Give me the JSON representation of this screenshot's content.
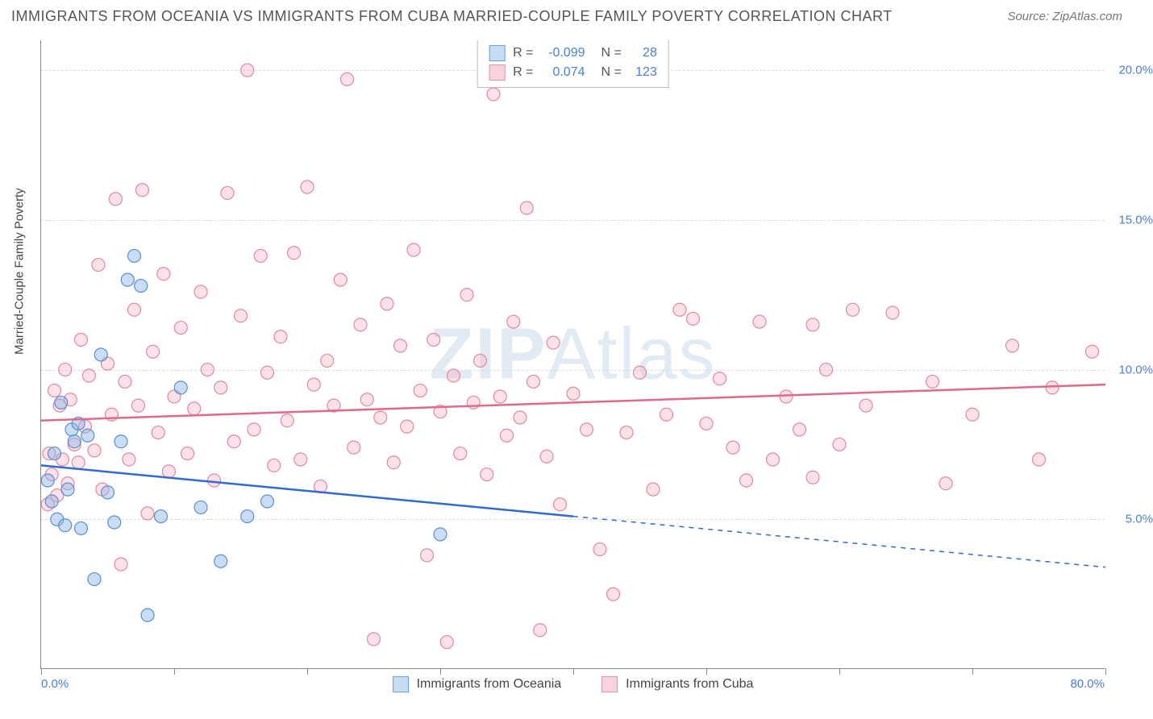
{
  "title": "IMMIGRANTS FROM OCEANIA VS IMMIGRANTS FROM CUBA MARRIED-COUPLE FAMILY POVERTY CORRELATION CHART",
  "source": "Source: ZipAtlas.com",
  "watermark_a": "ZIP",
  "watermark_b": "Atlas",
  "yaxis": {
    "title": "Married-Couple Family Poverty",
    "min": 0.0,
    "max": 21.0,
    "ticks": [
      5.0,
      10.0,
      15.0,
      20.0
    ],
    "tick_labels": [
      "5.0%",
      "10.0%",
      "15.0%",
      "20.0%"
    ],
    "tick_color": "#4a7fd6",
    "grid_color": "#dcdcdc"
  },
  "xaxis": {
    "min": 0.0,
    "max": 80.0,
    "tick_positions": [
      0,
      10,
      20,
      30,
      40,
      50,
      60,
      70,
      80
    ],
    "start_label": "0.0%",
    "end_label": "80.0%"
  },
  "series": {
    "oceania": {
      "label": "Immigrants from Oceania",
      "R": "-0.099",
      "N": "28",
      "marker_fill": "rgba(140,180,230,0.45)",
      "marker_stroke": "#5a8fd0",
      "swatch_fill": "#c7ddf4",
      "swatch_border": "#6a9fe0",
      "line_color": "#2f6bd0",
      "line_width": 2.5,
      "line_start": {
        "x": 0,
        "y": 6.8
      },
      "line_end_solid": {
        "x": 40,
        "y": 5.1
      },
      "line_end_dash": {
        "x": 80,
        "y": 3.4
      },
      "points": [
        [
          0.5,
          6.3
        ],
        [
          0.8,
          5.6
        ],
        [
          1.0,
          7.2
        ],
        [
          1.2,
          5.0
        ],
        [
          1.5,
          8.9
        ],
        [
          1.8,
          4.8
        ],
        [
          2.0,
          6.0
        ],
        [
          2.3,
          8.0
        ],
        [
          2.5,
          7.6
        ],
        [
          2.8,
          8.2
        ],
        [
          3.0,
          4.7
        ],
        [
          3.5,
          7.8
        ],
        [
          4.0,
          3.0
        ],
        [
          4.5,
          10.5
        ],
        [
          5.0,
          5.9
        ],
        [
          5.5,
          4.9
        ],
        [
          6.0,
          7.6
        ],
        [
          6.5,
          13.0
        ],
        [
          7.0,
          13.8
        ],
        [
          7.5,
          12.8
        ],
        [
          8.0,
          1.8
        ],
        [
          9.0,
          5.1
        ],
        [
          10.5,
          9.4
        ],
        [
          12.0,
          5.4
        ],
        [
          13.5,
          3.6
        ],
        [
          15.5,
          5.1
        ],
        [
          17.0,
          5.6
        ],
        [
          30.0,
          4.5
        ]
      ]
    },
    "cuba": {
      "label": "Immigrants from Cuba",
      "R": "0.074",
      "N": "123",
      "marker_fill": "rgba(245,170,190,0.35)",
      "marker_stroke": "#e08aa0",
      "swatch_fill": "#f7d3dd",
      "swatch_border": "#e793aa",
      "line_color": "#e06a8a",
      "line_width": 2.5,
      "line_start": {
        "x": 0,
        "y": 8.3
      },
      "line_end": {
        "x": 80,
        "y": 9.5
      },
      "points": [
        [
          0.5,
          5.5
        ],
        [
          0.6,
          7.2
        ],
        [
          0.8,
          6.5
        ],
        [
          1.0,
          9.3
        ],
        [
          1.2,
          5.8
        ],
        [
          1.4,
          8.8
        ],
        [
          1.6,
          7.0
        ],
        [
          1.8,
          10.0
        ],
        [
          2.0,
          6.2
        ],
        [
          2.2,
          9.0
        ],
        [
          2.5,
          7.5
        ],
        [
          2.8,
          6.9
        ],
        [
          3.0,
          11.0
        ],
        [
          3.3,
          8.1
        ],
        [
          3.6,
          9.8
        ],
        [
          4.0,
          7.3
        ],
        [
          4.3,
          13.5
        ],
        [
          4.6,
          6.0
        ],
        [
          5.0,
          10.2
        ],
        [
          5.3,
          8.5
        ],
        [
          5.6,
          15.7
        ],
        [
          6.0,
          3.5
        ],
        [
          6.3,
          9.6
        ],
        [
          6.6,
          7.0
        ],
        [
          7.0,
          12.0
        ],
        [
          7.3,
          8.8
        ],
        [
          7.6,
          16.0
        ],
        [
          8.0,
          5.2
        ],
        [
          8.4,
          10.6
        ],
        [
          8.8,
          7.9
        ],
        [
          9.2,
          13.2
        ],
        [
          9.6,
          6.6
        ],
        [
          10.0,
          9.1
        ],
        [
          10.5,
          11.4
        ],
        [
          11.0,
          7.2
        ],
        [
          11.5,
          8.7
        ],
        [
          12.0,
          12.6
        ],
        [
          12.5,
          10.0
        ],
        [
          13.0,
          6.3
        ],
        [
          13.5,
          9.4
        ],
        [
          14.0,
          15.9
        ],
        [
          14.5,
          7.6
        ],
        [
          15.0,
          11.8
        ],
        [
          15.5,
          20.0
        ],
        [
          16.0,
          8.0
        ],
        [
          16.5,
          13.8
        ],
        [
          17.0,
          9.9
        ],
        [
          17.5,
          6.8
        ],
        [
          18.0,
          11.1
        ],
        [
          18.5,
          8.3
        ],
        [
          19.0,
          13.9
        ],
        [
          19.5,
          7.0
        ],
        [
          20.0,
          16.1
        ],
        [
          20.5,
          9.5
        ],
        [
          21.0,
          6.1
        ],
        [
          21.5,
          10.3
        ],
        [
          22.0,
          8.8
        ],
        [
          22.5,
          13.0
        ],
        [
          23.0,
          19.7
        ],
        [
          23.5,
          7.4
        ],
        [
          24.0,
          11.5
        ],
        [
          24.5,
          9.0
        ],
        [
          25.0,
          1.0
        ],
        [
          25.5,
          8.4
        ],
        [
          26.0,
          12.2
        ],
        [
          26.5,
          6.9
        ],
        [
          27.0,
          10.8
        ],
        [
          27.5,
          8.1
        ],
        [
          28.0,
          14.0
        ],
        [
          28.5,
          9.3
        ],
        [
          29.0,
          3.8
        ],
        [
          29.5,
          11.0
        ],
        [
          30.0,
          8.6
        ],
        [
          30.5,
          0.9
        ],
        [
          31.0,
          9.8
        ],
        [
          31.5,
          7.2
        ],
        [
          32.0,
          12.5
        ],
        [
          32.5,
          8.9
        ],
        [
          33.0,
          10.3
        ],
        [
          33.5,
          6.5
        ],
        [
          34.0,
          19.2
        ],
        [
          34.5,
          9.1
        ],
        [
          35.0,
          7.8
        ],
        [
          35.5,
          11.6
        ],
        [
          36.0,
          8.4
        ],
        [
          36.5,
          15.4
        ],
        [
          37.0,
          9.6
        ],
        [
          37.5,
          1.3
        ],
        [
          38.0,
          7.1
        ],
        [
          38.5,
          10.9
        ],
        [
          39.0,
          5.5
        ],
        [
          40.0,
          9.2
        ],
        [
          41.0,
          8.0
        ],
        [
          42.0,
          4.0
        ],
        [
          43.0,
          2.5
        ],
        [
          44.0,
          7.9
        ],
        [
          45.0,
          9.9
        ],
        [
          46.0,
          6.0
        ],
        [
          47.0,
          8.5
        ],
        [
          48.0,
          12.0
        ],
        [
          49.0,
          11.7
        ],
        [
          50.0,
          8.2
        ],
        [
          51.0,
          9.7
        ],
        [
          52.0,
          7.4
        ],
        [
          53.0,
          6.3
        ],
        [
          54.0,
          11.6
        ],
        [
          55.0,
          7.0
        ],
        [
          56.0,
          9.1
        ],
        [
          57.0,
          8.0
        ],
        [
          58.0,
          6.4
        ],
        [
          59.0,
          10.0
        ],
        [
          60.0,
          7.5
        ],
        [
          61.0,
          12.0
        ],
        [
          64.0,
          11.9
        ],
        [
          67.0,
          9.6
        ],
        [
          70.0,
          8.5
        ],
        [
          73.0,
          10.8
        ],
        [
          76.0,
          9.4
        ],
        [
          79.0,
          10.6
        ],
        [
          75.0,
          7.0
        ],
        [
          68.0,
          6.2
        ],
        [
          62.0,
          8.8
        ],
        [
          58.0,
          11.5
        ]
      ]
    }
  },
  "marker_radius": 8,
  "background_color": "#ffffff"
}
